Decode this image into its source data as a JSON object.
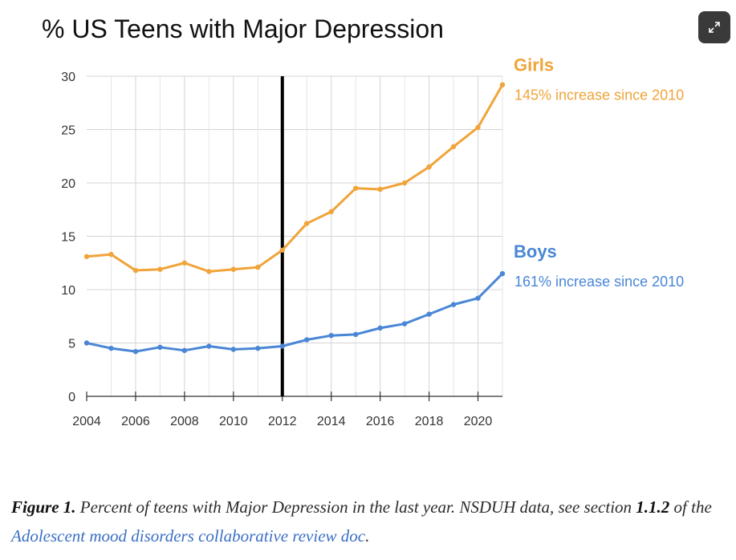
{
  "chart_data": {
    "type": "line",
    "title": "% US Teens with Major Depression",
    "xlabel": "",
    "ylabel": "",
    "ylim": [
      0,
      30
    ],
    "xlim": [
      2004,
      2021
    ],
    "yticks": [
      "0",
      "5",
      "10",
      "15",
      "20",
      "25",
      "30"
    ],
    "xticks": [
      "2004",
      "2006",
      "2008",
      "2010",
      "2012",
      "2014",
      "2016",
      "2018",
      "2020"
    ],
    "x": [
      2004,
      2005,
      2006,
      2007,
      2008,
      2009,
      2010,
      2011,
      2012,
      2013,
      2014,
      2015,
      2016,
      2017,
      2018,
      2019,
      2020,
      2021
    ],
    "series": [
      {
        "name": "Girls",
        "color": "#f0a43a",
        "values": [
          13.1,
          13.3,
          11.8,
          11.9,
          12.5,
          11.7,
          11.9,
          12.1,
          13.7,
          16.2,
          17.3,
          19.5,
          19.4,
          20.0,
          21.5,
          23.4,
          25.2,
          29.2
        ]
      },
      {
        "name": "Boys",
        "color": "#4a86d6",
        "values": [
          5.0,
          4.5,
          4.2,
          4.6,
          4.3,
          4.7,
          4.4,
          4.5,
          4.7,
          5.3,
          5.7,
          5.8,
          6.4,
          6.8,
          7.7,
          8.6,
          9.2,
          11.5
        ]
      }
    ],
    "vertical_marker_x": 2012,
    "grid": true,
    "annotations": [
      {
        "series": "Girls",
        "title": "Girls",
        "text": "145% increase since 2010"
      },
      {
        "series": "Boys",
        "title": "Boys",
        "text": "161% increase since 2010"
      }
    ]
  },
  "controls": {
    "expand_icon": "expand-arrows-icon"
  },
  "caption": {
    "figure_label": "Figure 1.",
    "text_1": " Percent of teens with Major Depression in the last year. NSDUH data, see section ",
    "section": "1.1.2",
    "text_2": " of the ",
    "link_text": "Adolescent mood disorders collaborative review doc",
    "text_3": "."
  }
}
